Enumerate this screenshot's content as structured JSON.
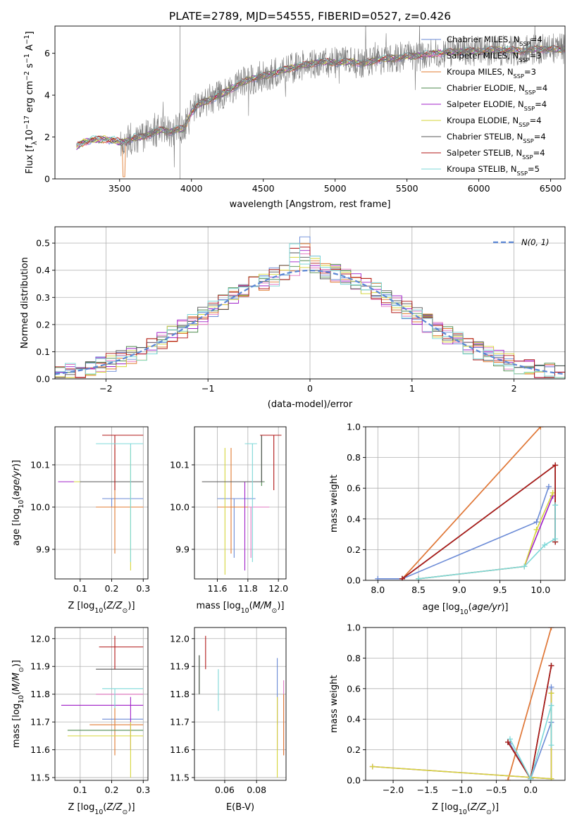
{
  "title": "PLATE=2789, MJD=54555, FIBERID=0527, z=0.426",
  "model_colors": [
    "#6a8ad6",
    "#e377c2",
    "#e07b30",
    "#4d8a4d",
    "#a020c8",
    "#d6d63a",
    "#555555",
    "#b01717",
    "#7dd8d8"
  ],
  "chart_data": [
    {
      "id": "spectrum",
      "type": "line",
      "xlabel": "wavelength [Angstrom, rest frame]",
      "ylabel": "Flux [f$_\\lambda$10$^{-17}$ erg cm$^{-2}$ s$^{-1}$ A$^{-1}$]",
      "xlim": [
        3050,
        6600
      ],
      "ylim": [
        0,
        7.3
      ],
      "xticks": [
        3500,
        4000,
        4500,
        5000,
        5500,
        6000,
        6500
      ],
      "yticks": [
        0,
        2,
        4,
        6
      ],
      "grid": false,
      "legend": "top-right",
      "legend_entries": [
        "Chabrier MILES, N_SSP=4",
        "Salpeter MILES, N_SSP=3",
        "Kroupa MILES, N_SSP=3",
        "Chabrier ELODIE, N_SSP=4",
        "Salpeter ELODIE, N_SSP=4",
        "Kroupa ELODIE, N_SSP=4",
        "Chabrier STELIB, N_SSP=4",
        "Salpeter STELIB, N_SSP=4",
        "Kroupa STELIB, N_SSP=5"
      ],
      "continuum_points": [
        [
          3200,
          1.55
        ],
        [
          3250,
          1.75
        ],
        [
          3300,
          1.85
        ],
        [
          3400,
          1.9
        ],
        [
          3450,
          1.85
        ],
        [
          3500,
          1.75
        ],
        [
          3550,
          1.8
        ],
        [
          3600,
          1.95
        ],
        [
          3650,
          2.0
        ],
        [
          3700,
          2.1
        ],
        [
          3750,
          2.25
        ],
        [
          3800,
          2.35
        ],
        [
          3850,
          2.25
        ],
        [
          3900,
          2.35
        ],
        [
          3950,
          2.4
        ],
        [
          4000,
          3.2
        ],
        [
          4050,
          3.55
        ],
        [
          4100,
          3.7
        ],
        [
          4200,
          4.0
        ],
        [
          4300,
          4.4
        ],
        [
          4400,
          4.75
        ],
        [
          4500,
          4.9
        ],
        [
          4600,
          5.1
        ],
        [
          4700,
          5.3
        ],
        [
          4800,
          5.45
        ],
        [
          4900,
          5.6
        ],
        [
          5000,
          5.55
        ],
        [
          5100,
          5.6
        ],
        [
          5200,
          5.5
        ],
        [
          5300,
          5.7
        ],
        [
          5400,
          5.75
        ],
        [
          5500,
          5.85
        ],
        [
          5600,
          5.9
        ],
        [
          5700,
          6.0
        ],
        [
          5800,
          6.05
        ],
        [
          5900,
          6.1
        ],
        [
          6000,
          6.1
        ],
        [
          6100,
          6.15
        ],
        [
          6200,
          6.15
        ],
        [
          6300,
          6.1
        ],
        [
          6400,
          6.2
        ],
        [
          6500,
          6.2
        ],
        [
          6600,
          6.2
        ]
      ]
    },
    {
      "id": "residuals",
      "type": "histogram",
      "xlabel": "(data-model)/error",
      "ylabel": "Normed distribution",
      "xlim": [
        -2.5,
        2.5
      ],
      "ylim": [
        0,
        0.56
      ],
      "xticks": [
        -2,
        -1,
        0,
        1,
        2
      ],
      "yticks": [
        0.0,
        0.1,
        0.2,
        0.3,
        0.4,
        0.5
      ],
      "grid": true,
      "legend": "top-right",
      "curve_label": "N(0,1)",
      "curve": "standard normal pdf",
      "bin_width": 0.1
    },
    {
      "id": "age_vs_Z",
      "type": "errorbar",
      "xlabel": "Z [log10(Z/Z☉)]",
      "ylabel": "age [log10(age/yr)]",
      "xlim": [
        0.02,
        0.315
      ],
      "ylim": [
        9.83,
        10.19
      ],
      "xticks": [
        0.1,
        0.2,
        0.3
      ],
      "yticks": [
        9.9,
        10.0,
        10.1
      ],
      "grid": true,
      "points": [
        [
          0.2,
          10.02,
          0.17,
          0.3,
          10.0,
          10.02
        ],
        [
          0.15,
          10.0,
          0.15,
          0.3,
          10.0,
          10.0
        ],
        [
          0.21,
          10.0,
          0.15,
          0.3,
          9.89,
          10.14
        ],
        [
          0.2,
          10.06,
          0.09,
          0.3,
          10.06,
          10.06
        ],
        [
          0.21,
          10.06,
          0.03,
          0.3,
          10.06,
          10.06
        ],
        [
          0.26,
          10.06,
          0.08,
          0.3,
          9.85,
          10.14
        ],
        [
          0.21,
          10.06,
          0.1,
          0.3,
          10.06,
          10.06
        ],
        [
          0.21,
          10.17,
          0.17,
          0.3,
          10.04,
          10.17
        ],
        [
          0.26,
          10.15,
          0.15,
          0.3,
          9.87,
          10.15
        ]
      ]
    },
    {
      "id": "age_vs_mass",
      "type": "errorbar",
      "xlabel": "mass [log10(M/M☉)]",
      "ylabel": "",
      "xlim": [
        11.45,
        12.05
      ],
      "ylim": [
        9.83,
        10.19
      ],
      "xticks": [
        11.6,
        11.8,
        12.0
      ],
      "yticks": [
        9.9,
        10.0,
        10.1
      ],
      "grid": true,
      "points": [
        [
          11.71,
          10.02,
          11.6,
          11.85,
          9.88,
          10.02
        ],
        [
          11.82,
          10.0,
          11.72,
          11.94,
          9.88,
          10.0
        ],
        [
          11.69,
          10.0,
          11.6,
          11.8,
          9.89,
          10.14
        ],
        [
          11.89,
          10.06,
          11.5,
          11.91,
          10.05,
          10.17
        ],
        [
          11.78,
          10.06,
          11.5,
          11.79,
          9.85,
          10.06
        ],
        [
          11.65,
          10.06,
          11.5,
          11.7,
          9.84,
          10.14
        ],
        [
          11.89,
          10.06,
          11.5,
          11.9,
          10.06,
          10.17
        ],
        [
          11.97,
          10.17,
          11.88,
          12.02,
          10.04,
          10.17
        ],
        [
          11.83,
          10.15,
          11.78,
          11.86,
          9.87,
          10.15
        ]
      ]
    },
    {
      "id": "weight_vs_age",
      "type": "line",
      "xlabel": "age [log10(age/yr)]",
      "ylabel": "mass weight",
      "xlim": [
        7.85,
        10.3
      ],
      "ylim": [
        0,
        1.0
      ],
      "xticks": [
        8.0,
        8.5,
        9.0,
        9.5,
        10.0
      ],
      "yticks": [
        0.0,
        0.2,
        0.4,
        0.6,
        0.8,
        1.0
      ],
      "grid": true,
      "series": [
        {
          "points": [
            [
              8.0,
              0.01
            ],
            [
              8.3,
              0.01
            ],
            [
              9.95,
              0.38
            ],
            [
              10.1,
              0.61
            ]
          ]
        },
        {
          "points": [
            [
              8.3,
              0.01
            ],
            [
              10.0,
              1.0
            ]
          ]
        },
        {
          "points": [
            [
              8.3,
              0.01
            ],
            [
              10.0,
              1.0
            ]
          ]
        },
        {
          "points": [
            [
              8.3,
              0.01
            ],
            [
              10.18,
              0.75
            ],
            [
              10.18,
              0.25
            ]
          ]
        },
        {
          "points": [
            [
              8.5,
              0.01
            ],
            [
              9.8,
              0.09
            ],
            [
              10.15,
              0.55
            ]
          ]
        },
        {
          "points": [
            [
              8.5,
              0.01
            ],
            [
              9.8,
              0.09
            ],
            [
              9.95,
              0.33
            ],
            [
              10.15,
              0.57
            ]
          ]
        },
        {
          "points": [
            [
              8.3,
              0.01
            ],
            [
              10.18,
              0.75
            ],
            [
              10.18,
              0.25
            ]
          ]
        },
        {
          "points": [
            [
              8.3,
              0.01
            ],
            [
              10.18,
              0.75
            ],
            [
              10.18,
              0.25
            ]
          ]
        },
        {
          "points": [
            [
              8.5,
              0.01
            ],
            [
              9.8,
              0.09
            ],
            [
              10.05,
              0.23
            ],
            [
              10.18,
              0.27
            ],
            [
              10.18,
              0.49
            ]
          ]
        }
      ]
    },
    {
      "id": "mass_vs_Z",
      "type": "errorbar",
      "xlabel": "Z [log10(Z/Z☉)]",
      "ylabel": "mass [log10(M/M☉)]",
      "xlim": [
        0.02,
        0.315
      ],
      "ylim": [
        11.49,
        12.04
      ],
      "xticks": [
        0.1,
        0.2,
        0.3
      ],
      "yticks": [
        11.5,
        11.6,
        11.7,
        11.8,
        11.9,
        12.0
      ],
      "grid": true,
      "points": [
        [
          0.2,
          11.71,
          0.17,
          0.3,
          11.71,
          11.71
        ],
        [
          0.21,
          11.8,
          0.15,
          0.3,
          11.8,
          11.8
        ],
        [
          0.21,
          11.69,
          0.13,
          0.3,
          11.58,
          11.8
        ],
        [
          0.21,
          11.67,
          0.06,
          0.3,
          11.67,
          11.67
        ],
        [
          0.26,
          11.76,
          0.04,
          0.3,
          11.6,
          11.79
        ],
        [
          0.26,
          11.65,
          0.06,
          0.3,
          11.5,
          11.7
        ],
        [
          0.21,
          11.89,
          0.15,
          0.3,
          11.89,
          11.89
        ],
        [
          0.21,
          11.97,
          0.16,
          0.3,
          11.89,
          12.01
        ],
        [
          0.21,
          11.82,
          0.17,
          0.3,
          11.75,
          11.82
        ]
      ]
    },
    {
      "id": "mass_vs_ebv",
      "type": "errorbar",
      "xlabel": "E(B-V)",
      "ylabel": "",
      "xlim": [
        0.041,
        0.0985
      ],
      "ylim": [
        11.49,
        12.04
      ],
      "xticks": [
        0.06,
        0.08
      ],
      "yticks": [
        11.5,
        11.6,
        11.7,
        11.8,
        11.9,
        12.0
      ],
      "grid": true,
      "points": [
        [
          0.093,
          11.8,
          0.093,
          0.093,
          11.69,
          11.93
        ],
        [
          0.097,
          11.8,
          0.097,
          0.097,
          11.58,
          11.85
        ],
        [
          0.097,
          11.75,
          0.097,
          0.097,
          11.58,
          11.8
        ],
        [
          0.044,
          11.89,
          0.044,
          0.044,
          11.8,
          11.94
        ],
        [
          0.093,
          11.76,
          0.093,
          0.093,
          11.6,
          11.79
        ],
        [
          0.093,
          11.65,
          0.093,
          0.093,
          11.5,
          11.79
        ],
        [
          0.044,
          11.89,
          0.044,
          0.044,
          11.8,
          11.94
        ],
        [
          0.048,
          11.97,
          0.048,
          0.048,
          11.89,
          12.01
        ],
        [
          0.056,
          11.82,
          0.056,
          0.056,
          11.74,
          11.89
        ]
      ]
    },
    {
      "id": "weight_vs_Z",
      "type": "line",
      "xlabel": "Z [log10(Z/Z☉)]",
      "ylabel": "mass weight",
      "xlim": [
        -2.4,
        0.5
      ],
      "ylim": [
        0,
        1.0
      ],
      "xticks": [
        -2.0,
        -1.5,
        -1.0,
        -0.5,
        0.0
      ],
      "yticks": [
        0.0,
        0.2,
        0.4,
        0.6,
        0.8,
        1.0
      ],
      "grid": true,
      "series": [
        {
          "points": [
            [
              -0.3,
              0.24
            ],
            [
              0.0,
              0.01
            ],
            [
              0.3,
              0.38
            ],
            [
              0.3,
              0.61
            ]
          ]
        },
        {
          "points": [
            [
              -0.33,
              0.0
            ],
            [
              0.3,
              1.0
            ]
          ]
        },
        {
          "points": [
            [
              -0.33,
              0.0
            ],
            [
              0.3,
              1.0
            ]
          ]
        },
        {
          "points": [
            [
              -0.33,
              0.25
            ],
            [
              0.0,
              0.01
            ],
            [
              0.3,
              0.75
            ]
          ]
        },
        {
          "points": [
            [
              -2.3,
              0.09
            ],
            [
              0.3,
              0.01
            ],
            [
              0.3,
              0.57
            ]
          ]
        },
        {
          "points": [
            [
              -2.3,
              0.09
            ],
            [
              0.3,
              0.01
            ],
            [
              0.3,
              0.57
            ]
          ]
        },
        {
          "points": [
            [
              -0.33,
              0.25
            ],
            [
              0.0,
              0.01
            ],
            [
              0.3,
              0.75
            ]
          ]
        },
        {
          "points": [
            [
              -0.33,
              0.25
            ],
            [
              0.0,
              0.01
            ],
            [
              0.3,
              0.75
            ]
          ]
        },
        {
          "points": [
            [
              -0.3,
              0.27
            ],
            [
              0.0,
              0.01
            ],
            [
              0.3,
              0.49
            ],
            [
              0.3,
              0.23
            ]
          ]
        }
      ]
    }
  ]
}
